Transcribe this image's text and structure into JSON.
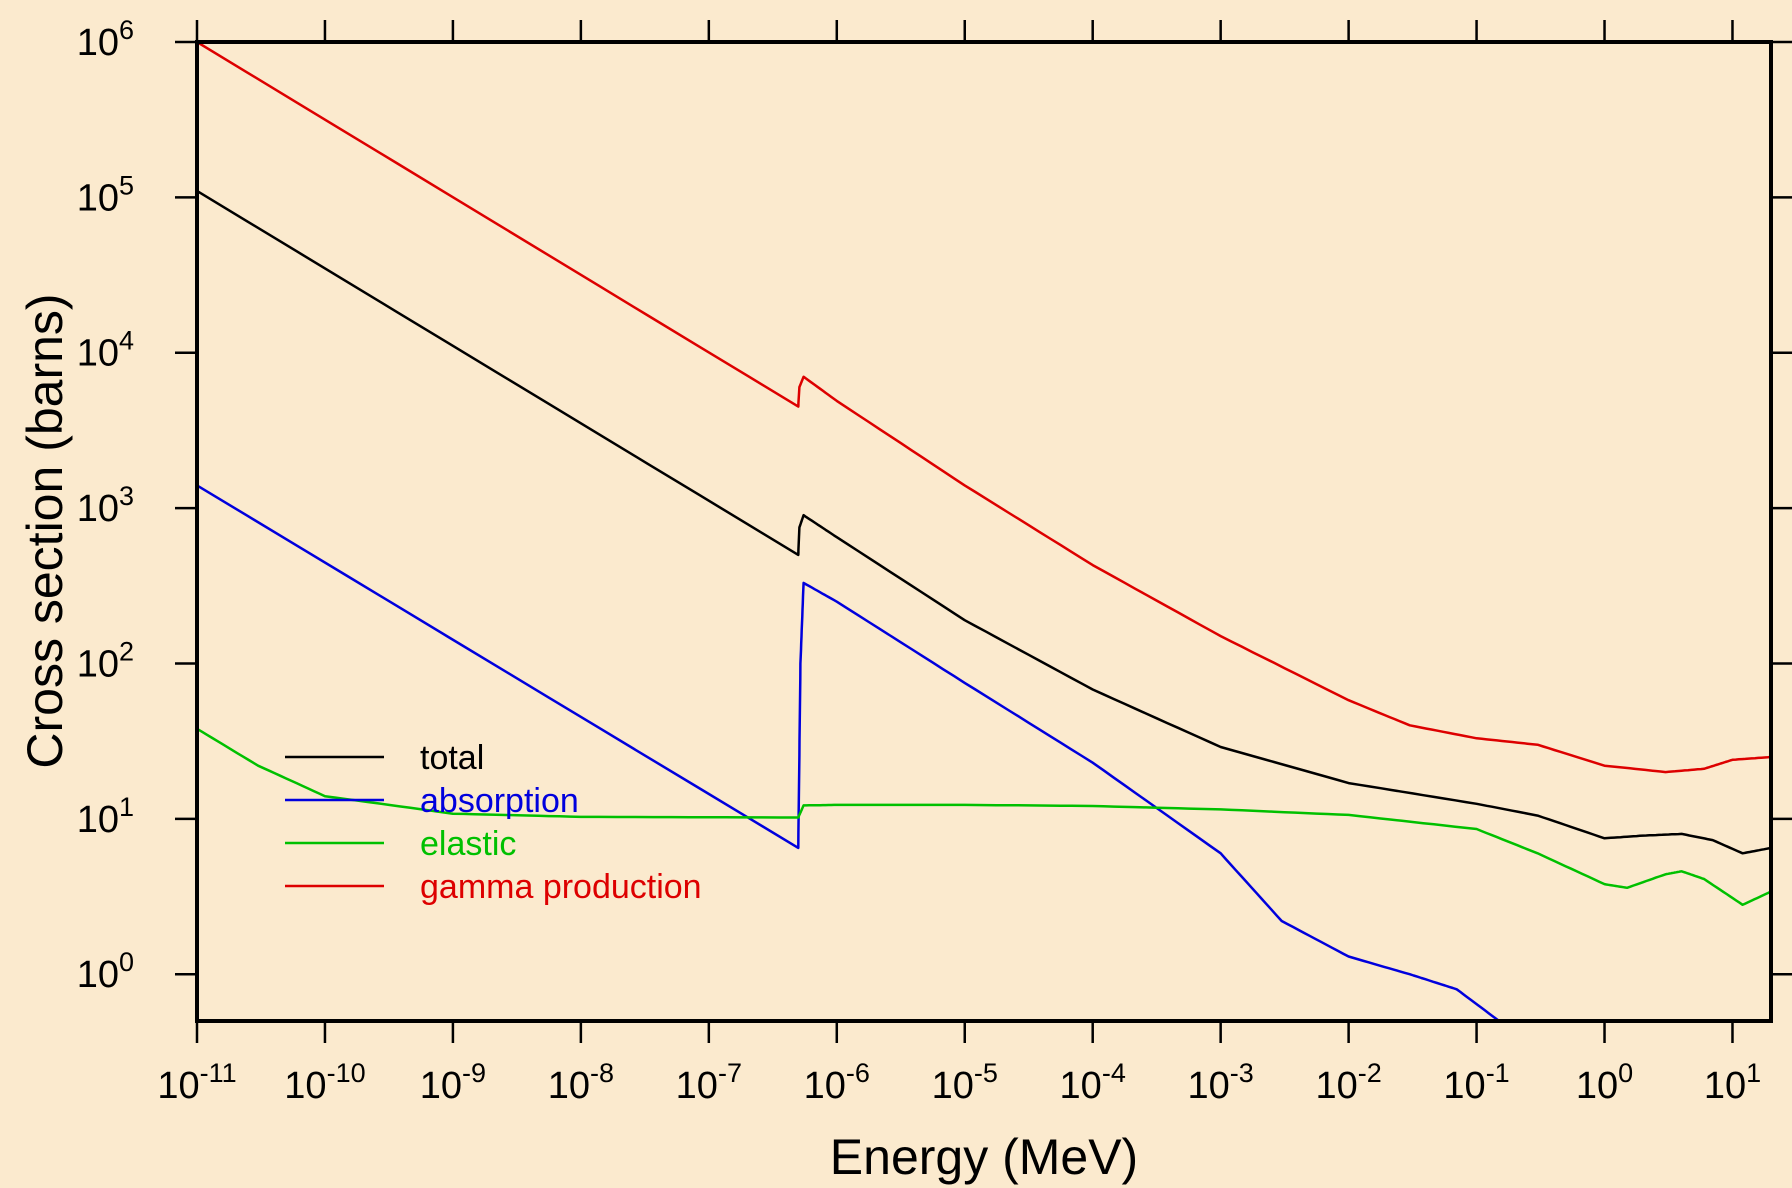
{
  "chart_data": {
    "type": "line",
    "xlabel": "Energy (MeV)",
    "ylabel": "Cross section (barns)",
    "x_scale": "log",
    "y_scale": "log",
    "xlim": [
      1e-11,
      20
    ],
    "ylim": [
      0.5,
      1000000
    ],
    "x_ticks": [
      {
        "base": "10",
        "exp": "-11",
        "value": 1e-11
      },
      {
        "base": "10",
        "exp": "-10",
        "value": 1e-10
      },
      {
        "base": "10",
        "exp": "-9",
        "value": 1e-09
      },
      {
        "base": "10",
        "exp": "-8",
        "value": 1e-08
      },
      {
        "base": "10",
        "exp": "-7",
        "value": 1e-07
      },
      {
        "base": "10",
        "exp": "-6",
        "value": 1e-06
      },
      {
        "base": "10",
        "exp": "-5",
        "value": 1e-05
      },
      {
        "base": "10",
        "exp": "-4",
        "value": 0.0001
      },
      {
        "base": "10",
        "exp": "-3",
        "value": 0.001
      },
      {
        "base": "10",
        "exp": "-2",
        "value": 0.01
      },
      {
        "base": "10",
        "exp": "-1",
        "value": 0.1
      },
      {
        "base": "10",
        "exp": "0",
        "value": 1
      },
      {
        "base": "10",
        "exp": "1",
        "value": 10
      }
    ],
    "y_ticks": [
      {
        "base": "10",
        "exp": "0",
        "value": 1
      },
      {
        "base": "10",
        "exp": "1",
        "value": 10
      },
      {
        "base": "10",
        "exp": "2",
        "value": 100
      },
      {
        "base": "10",
        "exp": "3",
        "value": 1000
      },
      {
        "base": "10",
        "exp": "4",
        "value": 10000
      },
      {
        "base": "10",
        "exp": "5",
        "value": 100000
      },
      {
        "base": "10",
        "exp": "6",
        "value": 1000000
      }
    ],
    "legend_position": "lower-left",
    "background_color": "#fbeace",
    "series": [
      {
        "name": "total",
        "color": "#000000",
        "points": [
          [
            1e-11,
            110000
          ],
          [
            5e-07,
            500
          ],
          [
            5.1e-07,
            750
          ],
          [
            5.5e-07,
            900
          ],
          [
            1e-06,
            650
          ],
          [
            1e-05,
            190
          ],
          [
            0.0001,
            68
          ],
          [
            0.001,
            29
          ],
          [
            0.01,
            17
          ],
          [
            0.1,
            12.5
          ],
          [
            0.3,
            10.5
          ],
          [
            1,
            7.5
          ],
          [
            2,
            7.8
          ],
          [
            4,
            8
          ],
          [
            7,
            7.3
          ],
          [
            12,
            6
          ],
          [
            20,
            6.5
          ]
        ]
      },
      {
        "name": "absorption",
        "color": "#0000dd",
        "points": [
          [
            1e-11,
            1400
          ],
          [
            5e-07,
            6.5
          ],
          [
            5.2e-07,
            100
          ],
          [
            5.5e-07,
            330
          ],
          [
            1e-06,
            250
          ],
          [
            1e-05,
            75
          ],
          [
            0.0001,
            23
          ],
          [
            0.001,
            6
          ],
          [
            0.003,
            2.2
          ],
          [
            0.01,
            1.3
          ],
          [
            0.03,
            1.0
          ],
          [
            0.07,
            0.8
          ],
          [
            0.15,
            0.5
          ],
          [
            20,
            0.5
          ]
        ]
      },
      {
        "name": "elastic",
        "color": "#00c000",
        "points": [
          [
            1e-11,
            38
          ],
          [
            3e-11,
            22
          ],
          [
            1e-10,
            14
          ],
          [
            1e-09,
            10.8
          ],
          [
            1e-08,
            10.3
          ],
          [
            5e-07,
            10.2
          ],
          [
            5.5e-07,
            12.2
          ],
          [
            1e-06,
            12.3
          ],
          [
            1e-05,
            12.3
          ],
          [
            0.0001,
            12.1
          ],
          [
            0.001,
            11.5
          ],
          [
            0.01,
            10.6
          ],
          [
            0.1,
            8.6
          ],
          [
            0.3,
            6
          ],
          [
            1,
            3.8
          ],
          [
            1.5,
            3.6
          ],
          [
            3,
            4.4
          ],
          [
            4,
            4.6
          ],
          [
            6,
            4.1
          ],
          [
            12,
            2.8
          ],
          [
            20,
            3.4
          ]
        ]
      },
      {
        "name": "gamma production",
        "color": "#dd0000",
        "points": [
          [
            1e-11,
            1000000
          ],
          [
            5e-07,
            4500
          ],
          [
            5.1e-07,
            6000
          ],
          [
            5.5e-07,
            7000
          ],
          [
            1e-06,
            4900
          ],
          [
            1e-05,
            1400
          ],
          [
            0.0001,
            430
          ],
          [
            0.001,
            150
          ],
          [
            0.01,
            58
          ],
          [
            0.03,
            40
          ],
          [
            0.1,
            33
          ],
          [
            0.3,
            30
          ],
          [
            1,
            22
          ],
          [
            3,
            20
          ],
          [
            6,
            21
          ],
          [
            10,
            24
          ],
          [
            20,
            25
          ]
        ]
      }
    ]
  }
}
